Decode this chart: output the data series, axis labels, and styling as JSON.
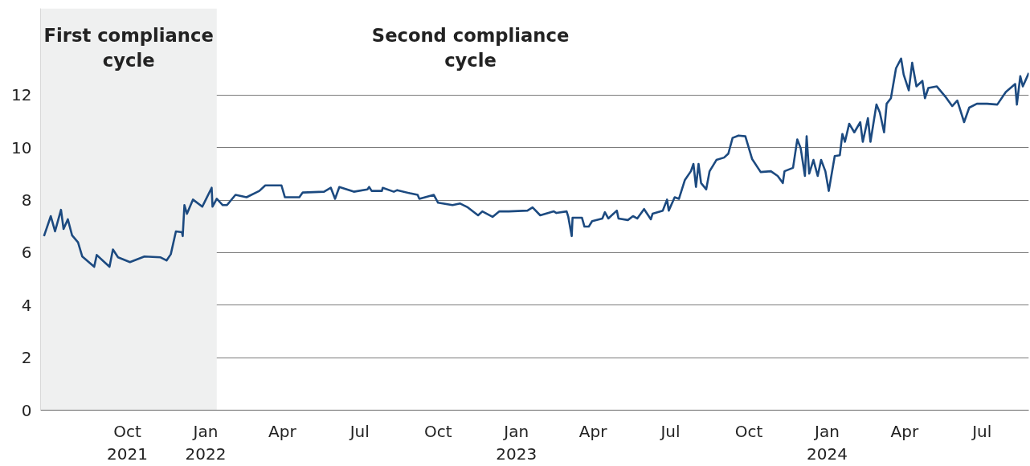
{
  "chart_data": {
    "type": "line",
    "x": [
      "2021-06-25",
      "2021-07-03",
      "2021-07-08",
      "2021-07-15",
      "2021-07-18",
      "2021-07-23",
      "2021-07-28",
      "2021-08-04",
      "2021-08-09",
      "2021-08-23",
      "2021-08-26",
      "2021-09-04",
      "2021-09-10",
      "2021-09-14",
      "2021-09-20",
      "2021-10-04",
      "2021-10-21",
      "2021-11-09",
      "2021-11-16",
      "2021-11-21",
      "2021-11-27",
      "2021-12-04",
      "2021-12-05",
      "2021-12-07",
      "2021-12-10",
      "2021-12-17",
      "2021-12-28",
      "2022-01-08",
      "2022-01-09",
      "2022-01-14",
      "2022-01-21",
      "2022-01-26",
      "2022-02-05",
      "2022-02-18",
      "2022-03-05",
      "2022-03-12",
      "2022-03-31",
      "2022-04-04",
      "2022-04-21",
      "2022-04-25",
      "2022-05-20",
      "2022-05-28",
      "2022-06-02",
      "2022-06-07",
      "2022-06-24",
      "2022-07-10",
      "2022-07-12",
      "2022-07-15",
      "2022-07-27",
      "2022-07-28",
      "2022-08-10",
      "2022-08-14",
      "2022-08-29",
      "2022-09-07",
      "2022-09-09",
      "2022-09-26",
      "2022-10-01",
      "2022-10-18",
      "2022-10-27",
      "2022-11-05",
      "2022-11-17",
      "2022-11-22",
      "2022-12-04",
      "2022-12-12",
      "2022-12-23",
      "2023-01-14",
      "2023-01-20",
      "2023-01-29",
      "2023-02-14",
      "2023-02-17",
      "2023-03-01",
      "2023-03-03",
      "2023-03-07",
      "2023-03-08",
      "2023-03-19",
      "2023-03-22",
      "2023-03-27",
      "2023-03-31",
      "2023-04-12",
      "2023-04-15",
      "2023-04-19",
      "2023-04-29",
      "2023-05-01",
      "2023-05-12",
      "2023-05-18",
      "2023-05-23",
      "2023-05-31",
      "2023-06-08",
      "2023-06-10",
      "2023-06-22",
      "2023-06-27",
      "2023-06-29",
      "2023-07-06",
      "2023-07-11",
      "2023-07-18",
      "2023-07-25",
      "2023-07-28",
      "2023-07-31",
      "2023-08-03",
      "2023-08-06",
      "2023-08-12",
      "2023-08-16",
      "2023-08-24",
      "2023-09-02",
      "2023-09-07",
      "2023-09-12",
      "2023-09-19",
      "2023-09-27",
      "2023-10-05",
      "2023-10-15",
      "2023-10-27",
      "2023-11-04",
      "2023-11-10",
      "2023-11-12",
      "2023-11-22",
      "2023-11-27",
      "2023-12-01",
      "2023-12-06",
      "2023-12-08",
      "2023-12-11",
      "2023-12-16",
      "2023-12-21",
      "2023-12-25",
      "2023-12-30",
      "2024-01-03",
      "2024-01-10",
      "2024-01-16",
      "2024-01-19",
      "2024-01-22",
      "2024-01-27",
      "2024-02-02",
      "2024-02-09",
      "2024-02-12",
      "2024-02-18",
      "2024-02-21",
      "2024-02-28",
      "2024-03-03",
      "2024-03-08",
      "2024-03-11",
      "2024-03-16",
      "2024-03-22",
      "2024-03-28",
      "2024-03-31",
      "2024-04-06",
      "2024-04-10",
      "2024-04-15",
      "2024-04-22",
      "2024-04-25",
      "2024-04-29",
      "2024-05-09",
      "2024-05-19",
      "2024-05-27",
      "2024-06-02",
      "2024-06-10",
      "2024-06-16",
      "2024-06-25",
      "2024-07-07",
      "2024-07-19",
      "2024-07-29",
      "2024-08-09",
      "2024-08-11",
      "2024-08-15",
      "2024-08-18",
      "2024-08-25"
    ],
    "series": [
      {
        "color": "#1c4a80",
        "values": [
          6.63,
          7.39,
          6.81,
          7.63,
          6.9,
          7.27,
          6.66,
          6.39,
          5.85,
          5.46,
          5.91,
          5.64,
          5.46,
          6.12,
          5.82,
          5.64,
          5.85,
          5.82,
          5.7,
          5.94,
          6.81,
          6.78,
          6.63,
          7.81,
          7.48,
          8.02,
          7.75,
          8.47,
          7.75,
          8.05,
          7.81,
          7.81,
          8.2,
          8.11,
          8.35,
          8.56,
          8.56,
          8.11,
          8.11,
          8.29,
          8.32,
          8.47,
          8.05,
          8.5,
          8.32,
          8.41,
          8.5,
          8.35,
          8.35,
          8.47,
          8.32,
          8.38,
          8.26,
          8.2,
          8.05,
          8.2,
          7.9,
          7.81,
          7.87,
          7.72,
          7.42,
          7.57,
          7.36,
          7.57,
          7.57,
          7.6,
          7.72,
          7.42,
          7.57,
          7.51,
          7.57,
          7.36,
          6.63,
          7.33,
          7.33,
          6.99,
          6.99,
          7.2,
          7.3,
          7.54,
          7.3,
          7.6,
          7.3,
          7.24,
          7.39,
          7.3,
          7.66,
          7.27,
          7.48,
          7.6,
          8.02,
          7.6,
          8.11,
          8.05,
          8.77,
          9.1,
          9.38,
          8.5,
          9.38,
          8.65,
          8.41,
          9.1,
          9.53,
          9.62,
          9.77,
          10.37,
          10.46,
          10.43,
          9.56,
          9.07,
          9.1,
          8.92,
          8.65,
          9.1,
          9.23,
          10.31,
          9.98,
          8.92,
          10.43,
          9.01,
          9.53,
          8.92,
          9.53,
          9.1,
          8.35,
          9.68,
          9.71,
          10.52,
          10.22,
          10.91,
          10.58,
          10.97,
          10.22,
          11.12,
          10.22,
          11.64,
          11.34,
          10.58,
          11.67,
          11.88,
          13.02,
          13.39,
          12.78,
          12.18,
          13.23,
          12.33,
          12.54,
          11.88,
          12.27,
          12.33,
          11.94,
          11.58,
          11.79,
          10.97,
          11.52,
          11.67,
          11.67,
          11.64,
          12.12,
          12.42,
          11.64,
          12.72,
          12.33,
          12.84
        ]
      }
    ],
    "xlim": [
      "2021-06-21",
      "2024-08-25"
    ],
    "xticks": [
      {
        "value": "2021-10-01",
        "label": "Oct\n2021"
      },
      {
        "value": "2022-01-01",
        "label": "Jan\n2022"
      },
      {
        "value": "2022-04-01",
        "label": "Apr"
      },
      {
        "value": "2022-07-01",
        "label": "Jul"
      },
      {
        "value": "2022-10-01",
        "label": "Oct"
      },
      {
        "value": "2023-01-01",
        "label": "Jan\n2023"
      },
      {
        "value": "2023-04-01",
        "label": "Apr"
      },
      {
        "value": "2023-07-01",
        "label": "Jul"
      },
      {
        "value": "2023-10-01",
        "label": "Oct"
      },
      {
        "value": "2024-01-01",
        "label": "Jan\n2024"
      },
      {
        "value": "2024-04-01",
        "label": "Apr"
      },
      {
        "value": "2024-07-01",
        "label": "Jul"
      }
    ],
    "ylim": [
      0,
      15.3
    ],
    "yticks": [
      0,
      2,
      4,
      6,
      8,
      10,
      12
    ],
    "grid": "y",
    "line_style": "solid",
    "marker": "none",
    "bands": [
      {
        "axis": "x",
        "from": "2021-06-21",
        "to": "2022-01-14",
        "label": "First compliance cycle",
        "color": "#eff0f0"
      }
    ],
    "annotations": [
      "Second compliance cycle"
    ]
  }
}
